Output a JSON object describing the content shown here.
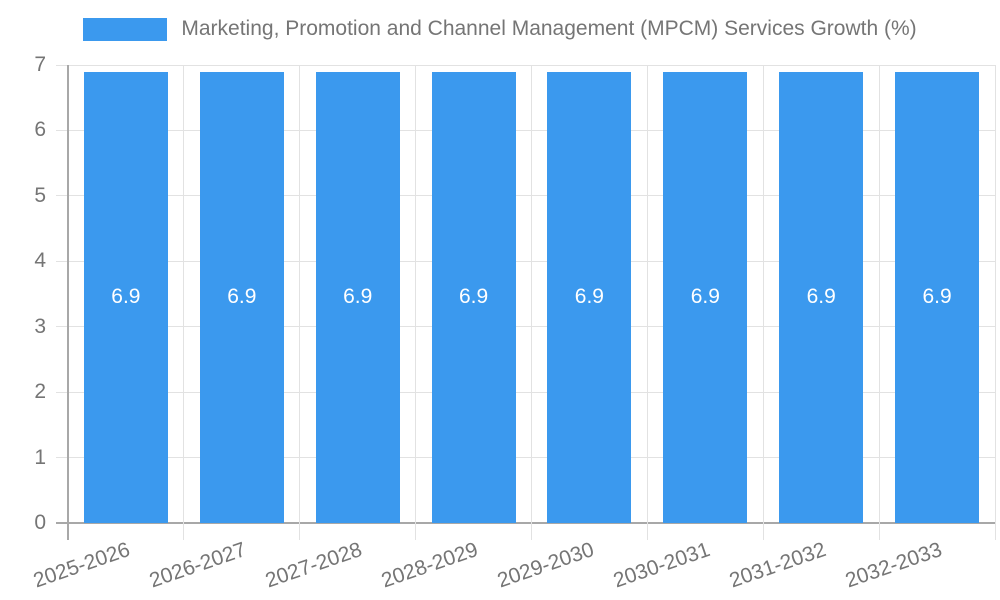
{
  "chart_data": {
    "type": "bar",
    "title": "Marketing, Promotion and Channel Management (MPCM) Services Growth (%)",
    "categories": [
      "2025-2026",
      "2026-2027",
      "2027-2028",
      "2028-2029",
      "2029-2030",
      "2030-2031",
      "2031-2032",
      "2032-2033"
    ],
    "values": [
      6.9,
      6.9,
      6.9,
      6.9,
      6.9,
      6.9,
      6.9,
      6.9
    ],
    "xlabel": "",
    "ylabel": "",
    "ylim": [
      0,
      7
    ],
    "yticks": [
      0,
      1,
      2,
      3,
      4,
      5,
      6,
      7
    ],
    "grid": true,
    "legend_position": "top",
    "value_labels": true
  },
  "colors": {
    "bar": "#3b99ee",
    "gridline": "#e2e2e2",
    "axis_line": "#a8a8a8",
    "text": "#757575",
    "value_label": "#ffffff",
    "background": "#ffffff"
  }
}
